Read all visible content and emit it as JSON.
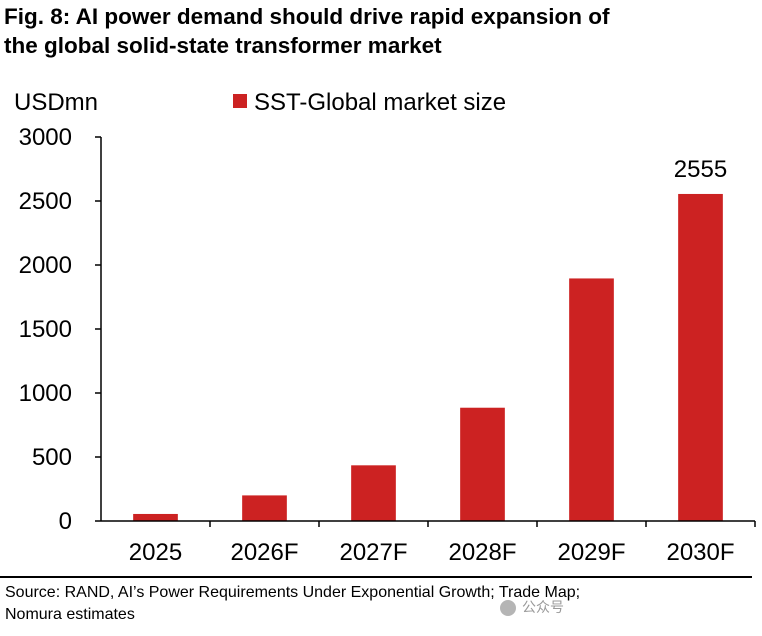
{
  "title_lines": [
    "Fig. 8: AI power demand should drive rapid expansion of",
    "the global solid-state transformer market"
  ],
  "chart_data": {
    "type": "bar",
    "unit_label": "USDmn",
    "categories": [
      "2025",
      "2026F",
      "2027F",
      "2028F",
      "2029F",
      "2030F"
    ],
    "series": [
      {
        "name": "SST-Global market size",
        "values": [
          55,
          200,
          435,
          885,
          1895,
          2555
        ]
      }
    ],
    "data_labels": {
      "2030F": "2555"
    },
    "ylim": [
      0,
      3000
    ],
    "yticks": [
      0,
      500,
      1000,
      1500,
      2000,
      2500,
      3000
    ],
    "legend_position": "top",
    "grid": false,
    "bar_color": "#cc2222"
  },
  "source_lines": [
    "Source: RAND, AI’s Power Requirements Under Exponential Growth; Trade Map;",
    "Nomura estimates"
  ],
  "watermark": {
    "text": "公众号",
    "icon": "wechat-icon"
  }
}
